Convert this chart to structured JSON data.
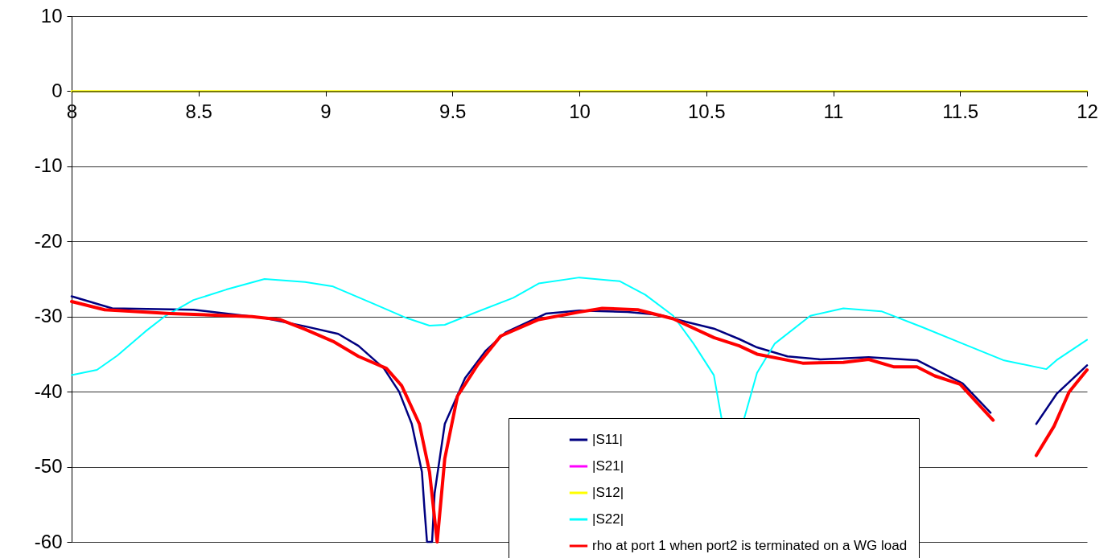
{
  "chart_data": {
    "type": "line",
    "xlim": [
      8,
      12
    ],
    "ylim": [
      -60,
      10
    ],
    "xticks": [
      8,
      8.5,
      9,
      9.5,
      10,
      10.5,
      11,
      11.5,
      12
    ],
    "yticks": [
      -60,
      -50,
      -40,
      -30,
      -20,
      -10,
      0,
      10
    ],
    "grid": "y",
    "legend": "bottom right",
    "marker": "none",
    "series": [
      {
        "name": "|S11|",
        "color": "#000080",
        "x": [
          8.0,
          8.16,
          8.48,
          8.61,
          8.76,
          8.92,
          9.05,
          9.13,
          9.23,
          9.29,
          9.34,
          9.38,
          9.39,
          9.4,
          9.42,
          9.43,
          9.47,
          9.55,
          9.63,
          9.71,
          9.87,
          10.0,
          10.19,
          10.32,
          10.42,
          10.53,
          10.63,
          10.7,
          10.82,
          10.95,
          11.14,
          11.33,
          11.51,
          11.62,
          11.7,
          11.8,
          11.88,
          12.0
        ],
        "values": [
          -27.3,
          -28.9,
          -29.1,
          -29.6,
          -30.2,
          -31.3,
          -32.3,
          -33.9,
          -36.9,
          -40,
          -44.3,
          -50.7,
          -55.6,
          -60,
          -60,
          -53.5,
          -44.3,
          -38.2,
          -34.6,
          -32.1,
          -29.6,
          -29.2,
          -29.4,
          -29.8,
          -30.7,
          -31.6,
          -33,
          -34.1,
          -35.3,
          -35.7,
          -35.4,
          -35.8,
          -38.9,
          -42.8,
          null,
          -44.3,
          -40.3,
          -36.5
        ]
      },
      {
        "name": "|S21|",
        "color": "#ff00ff"
      },
      {
        "name": "|S12|",
        "color": "#ffff00",
        "x": [
          8,
          8.5,
          9,
          9.5,
          10,
          10.5,
          11,
          11.5,
          12
        ],
        "values": [
          0,
          0,
          0,
          0,
          0,
          0,
          0,
          0,
          0
        ]
      },
      {
        "name": "|S22|",
        "color": "#00ffff",
        "x": [
          8.0,
          8.1,
          8.18,
          8.29,
          8.37,
          8.48,
          8.61,
          8.76,
          8.92,
          9.03,
          9.19,
          9.32,
          9.41,
          9.47,
          9.58,
          9.74,
          9.84,
          10.0,
          10.16,
          10.26,
          10.37,
          10.45,
          10.53,
          10.56,
          10.6,
          10.65,
          10.7,
          10.77,
          10.91,
          11.04,
          11.19,
          11.35,
          11.51,
          11.67,
          11.84,
          11.88,
          12.0
        ],
        "values": [
          -37.8,
          -37.1,
          -35.2,
          -32,
          -29.9,
          -27.8,
          -26.4,
          -25,
          -25.4,
          -26,
          -28.3,
          -30.2,
          -31.2,
          -31.1,
          -29.6,
          -27.5,
          -25.6,
          -24.8,
          -25.3,
          -27.1,
          -29.9,
          -33.6,
          -37.8,
          -43.5,
          null,
          -43.5,
          -37.5,
          -33.6,
          -29.9,
          -28.9,
          -29.3,
          -31.4,
          -33.6,
          -35.8,
          -37,
          -35.8,
          -33.1
        ]
      },
      {
        "name": "rho at port 1 when port2 is terminated on a WG load",
        "color": "#ff0000",
        "x": [
          8.0,
          8.13,
          8.39,
          8.71,
          8.82,
          8.92,
          9.03,
          9.13,
          9.24,
          9.3,
          9.37,
          9.41,
          9.44,
          9.44,
          9.47,
          9.52,
          9.6,
          9.69,
          9.84,
          10.0,
          10.09,
          10.23,
          10.37,
          10.53,
          10.63,
          10.7,
          10.88,
          11.04,
          11.14,
          11.24,
          11.33,
          11.4,
          11.5,
          11.63,
          11.7,
          11.8,
          11.87,
          11.93,
          12.0
        ],
        "values": [
          -28,
          -29.1,
          -29.6,
          -30,
          -30.4,
          -31.7,
          -33.3,
          -35.3,
          -36.9,
          -39.2,
          -44.3,
          -50.7,
          -60,
          -60,
          -48.9,
          -40.6,
          -36.4,
          -32.6,
          -30.4,
          -29.4,
          -28.9,
          -29.1,
          -30.3,
          -32.8,
          -33.9,
          -35,
          -36.2,
          -36.1,
          -35.7,
          -36.7,
          -36.7,
          -37.9,
          -39,
          -43.8,
          null,
          -48.5,
          -44.6,
          -40,
          -37.1
        ]
      }
    ]
  }
}
